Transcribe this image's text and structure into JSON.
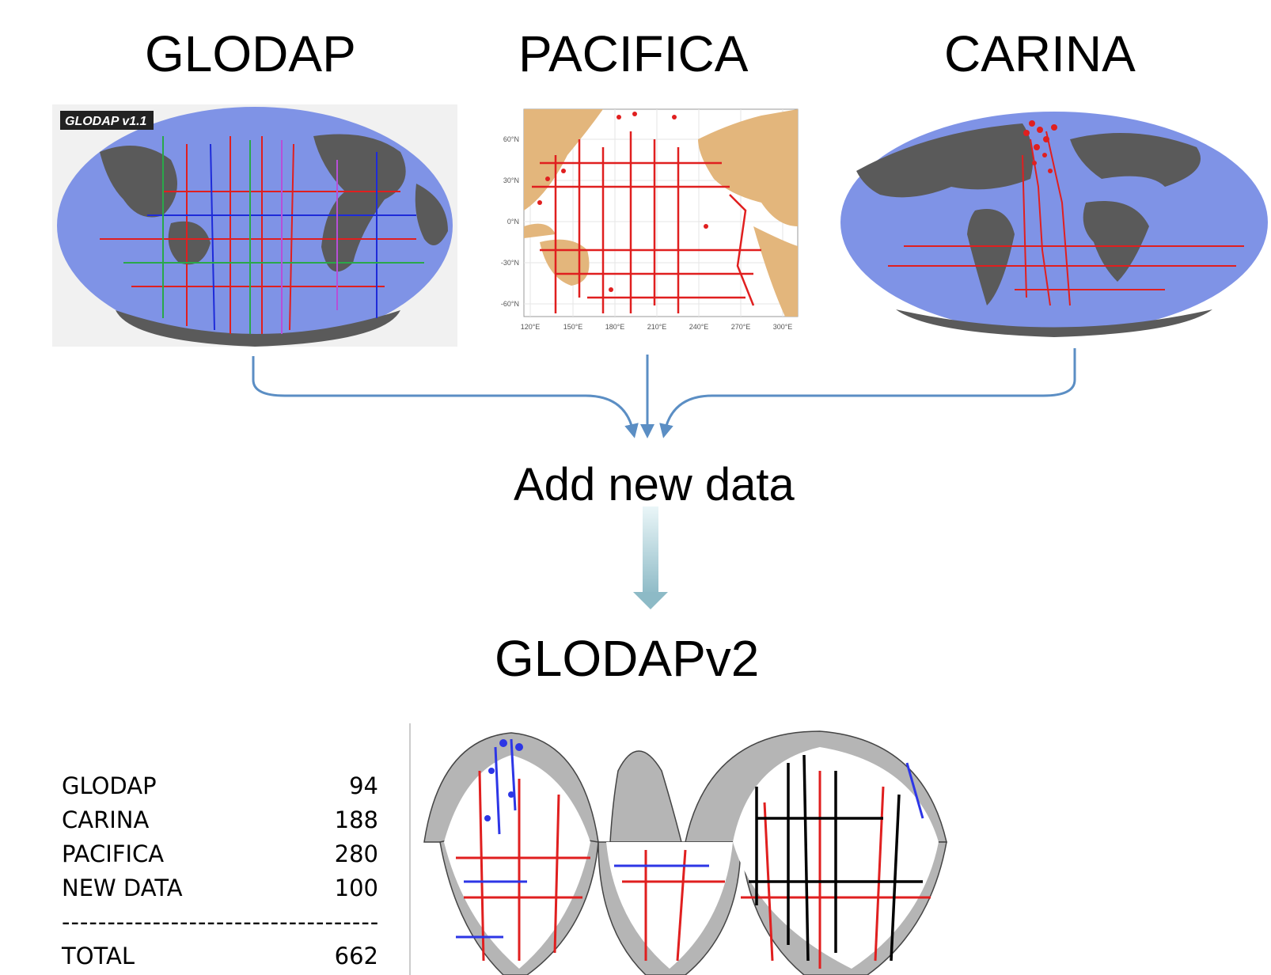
{
  "sources": [
    {
      "title": "GLODAP",
      "badge": "GLODAP v1.1"
    },
    {
      "title": "PACIFICA",
      "lat_ticks": [
        "60°N",
        "30°N",
        "0°N",
        "-30°N",
        "-60°N"
      ],
      "lon_ticks": [
        "120°E",
        "150°E",
        "180°E",
        "210°E",
        "240°E",
        "270°E",
        "300°E"
      ]
    },
    {
      "title": "CARINA"
    }
  ],
  "flow": {
    "step_label": "Add new data",
    "result_title": "GLODAPv2"
  },
  "table": {
    "rows": [
      {
        "label": "GLODAP",
        "value": "94"
      },
      {
        "label": "CARINA",
        "value": "188"
      },
      {
        "label": "PACIFICA",
        "value": "280"
      },
      {
        "label": "NEW DATA",
        "value": "100"
      }
    ],
    "separator": "------------------------------------",
    "total": {
      "label": "TOTAL",
      "value": "662"
    }
  },
  "colors": {
    "ocean": "#7f93e6",
    "land": "#5a5a5a",
    "pacifica_land": "#e3b67c",
    "track_red": "#e01f1f",
    "track_blue": "#2d36e6",
    "arrow": "#5b8ec4",
    "arrow_gradient_end": "#8dbac6"
  }
}
